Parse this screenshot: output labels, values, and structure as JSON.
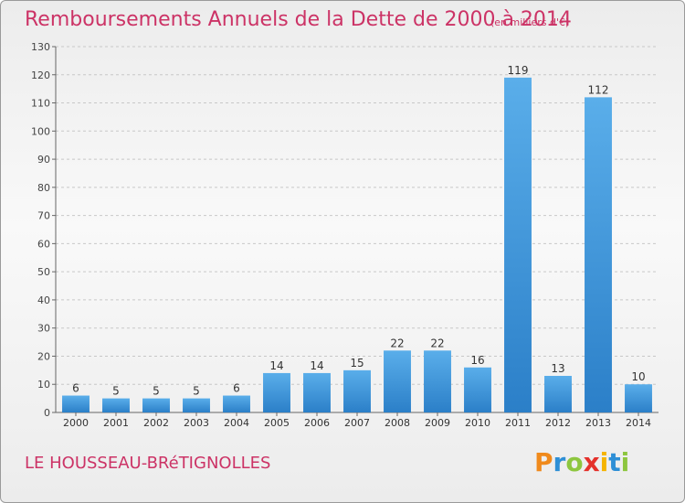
{
  "title": "Remboursements Annuels de la Dette de 2000 à 2014",
  "unit_note": "(en milliers d'€)",
  "city": "LE HOUSSEAU-BRéTIGNOLLES",
  "logo": {
    "text": "Proxiti",
    "colors": [
      "#f08a1c",
      "#2e8fd6",
      "#8dc63f",
      "#e4312b",
      "#f5b400",
      "#2e8fd6",
      "#8dc63f"
    ]
  },
  "colors": {
    "bar_light": "#5aaeea",
    "bar_dark": "#2b7fc8",
    "text": "#cc3366",
    "grid": "#c8c8c8"
  },
  "chart_data": {
    "type": "bar",
    "title": "Remboursements Annuels de la Dette de 2000 à 2014",
    "xlabel": "",
    "ylabel": "",
    "categories": [
      "2000",
      "2001",
      "2002",
      "2003",
      "2004",
      "2005",
      "2006",
      "2007",
      "2008",
      "2009",
      "2010",
      "2011",
      "2012",
      "2013",
      "2014"
    ],
    "values": [
      6,
      5,
      5,
      5,
      6,
      14,
      14,
      15,
      22,
      22,
      16,
      119,
      13,
      112,
      10
    ],
    "ylim": [
      0,
      130
    ],
    "yticks": [
      0,
      10,
      20,
      30,
      40,
      50,
      60,
      70,
      80,
      90,
      100,
      110,
      120,
      130
    ],
    "grid": true,
    "grid_style": "dashed",
    "legend": "none",
    "data_labels": true
  }
}
